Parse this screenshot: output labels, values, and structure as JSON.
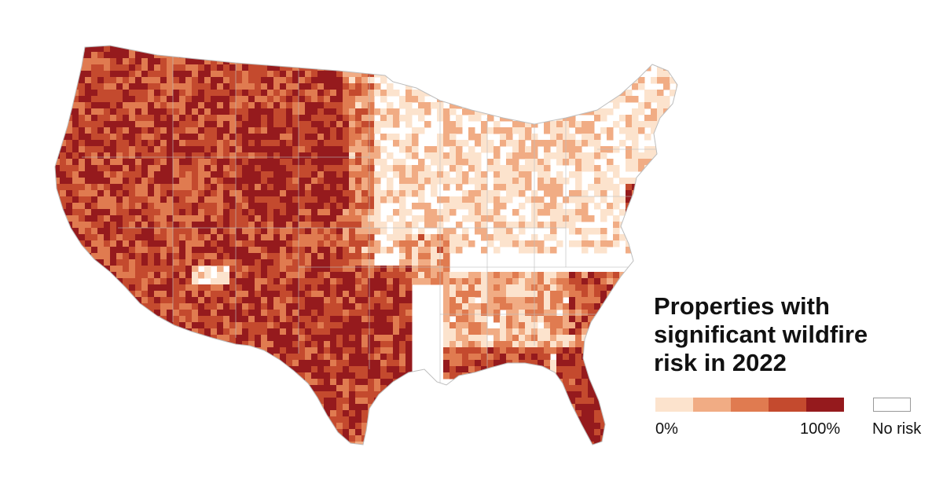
{
  "legend": {
    "title": "Properties with significant wildfire risk in 2022",
    "min_label": "0%",
    "max_label": "100%",
    "no_risk_label": "No risk",
    "colors": [
      "#fce3cd",
      "#f1ac84",
      "#e07b50",
      "#c44a2e",
      "#951a1d"
    ],
    "no_risk_color": "#ffffff"
  },
  "map": {
    "region": "contiguous-united-states",
    "border_color": "#bdbdbd",
    "background": "#ffffff"
  }
}
